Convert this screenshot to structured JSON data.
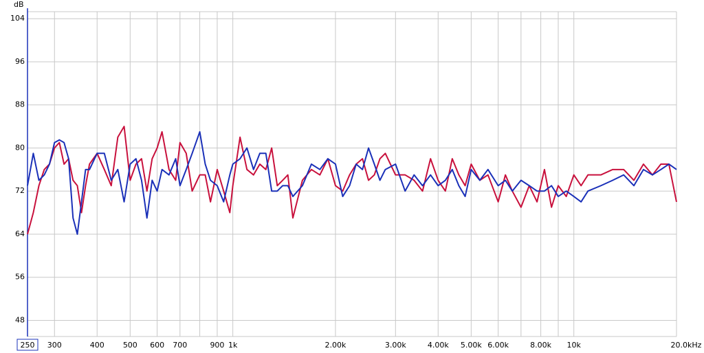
{
  "chart_data": {
    "type": "line",
    "y_label": "dB",
    "log_x": true,
    "grid": true,
    "xlim": [
      250,
      20000
    ],
    "ylim": [
      45,
      105.3
    ],
    "yticks": [
      48,
      56,
      64,
      72,
      80,
      88,
      96,
      104
    ],
    "xticks": [
      250,
      300,
      400,
      500,
      600,
      700,
      900,
      {
        "value": 1000,
        "label": "1k"
      },
      {
        "value": 2000,
        "label": "2.00k"
      },
      {
        "value": 3000,
        "label": "3.00k"
      },
      {
        "value": 4000,
        "label": "4.00k"
      },
      {
        "value": 5000,
        "label": "5.00k"
      },
      {
        "value": 6000,
        "label": "6.00k"
      },
      {
        "value": 8000,
        "label": "8.00k"
      },
      {
        "value": 10000,
        "label": "10k"
      },
      {
        "value": 20000,
        "label": "20.0kHz"
      }
    ],
    "xminor": [
      800,
      7000,
      9000
    ],
    "x": [
      250,
      260,
      270,
      280,
      290,
      300,
      310,
      320,
      330,
      340,
      350,
      360,
      370,
      380,
      400,
      420,
      440,
      460,
      480,
      500,
      520,
      540,
      560,
      580,
      600,
      620,
      650,
      680,
      700,
      730,
      760,
      800,
      830,
      860,
      900,
      940,
      980,
      1000,
      1050,
      1100,
      1150,
      1200,
      1250,
      1300,
      1350,
      1400,
      1450,
      1500,
      1600,
      1700,
      1800,
      1900,
      2000,
      2100,
      2200,
      2300,
      2400,
      2500,
      2600,
      2700,
      2800,
      3000,
      3200,
      3400,
      3600,
      3800,
      4000,
      4200,
      4400,
      4600,
      4800,
      5000,
      5300,
      5600,
      6000,
      6300,
      6600,
      7000,
      7400,
      7800,
      8200,
      8600,
      9000,
      9500,
      10000,
      10500,
      11000,
      12000,
      13000,
      14000,
      15000,
      16000,
      17000,
      18000,
      19000,
      20000
    ],
    "series": [
      {
        "color": "#c8103c",
        "values": [
          64,
          68,
          73,
          76,
          77,
          80,
          81,
          77,
          78,
          74,
          73,
          68,
          73,
          77,
          79,
          76,
          73,
          82,
          84,
          74,
          77,
          78,
          72,
          78,
          80,
          83,
          76,
          74,
          81,
          79,
          72,
          75,
          75,
          70,
          76,
          72,
          68,
          73,
          82,
          76,
          75,
          77,
          76,
          80,
          73,
          74,
          75,
          67,
          74,
          76,
          75,
          78,
          73,
          72,
          75,
          77,
          78,
          74,
          75,
          78,
          79,
          75,
          75,
          74,
          72,
          78,
          74,
          72,
          78,
          75,
          73,
          77,
          74,
          75,
          70,
          75,
          72,
          69,
          73,
          70,
          76,
          69,
          73,
          71,
          75,
          73,
          75,
          75,
          76,
          76,
          74,
          77,
          75,
          77,
          77,
          70
        ]
      },
      {
        "color": "#1a30b8",
        "values": [
          73,
          79,
          74,
          75,
          77,
          81,
          81.5,
          81,
          78,
          67,
          64,
          70,
          76,
          76,
          79,
          79,
          74,
          76,
          70,
          77,
          78,
          74,
          67,
          74,
          72,
          76,
          75,
          78,
          73,
          76,
          79,
          83,
          77,
          74,
          73,
          70,
          75,
          77,
          78,
          80,
          76,
          79,
          79,
          72,
          72,
          73,
          73,
          71,
          73,
          77,
          76,
          78,
          77,
          71,
          73,
          77,
          76,
          80,
          77,
          74,
          76,
          77,
          72,
          75,
          73,
          75,
          73,
          74,
          76,
          73,
          71,
          76,
          74,
          76,
          73,
          74,
          72,
          74,
          73,
          72,
          72,
          73,
          71,
          72,
          71,
          70,
          72,
          73,
          74,
          75,
          73,
          76,
          75,
          76,
          77,
          76
        ]
      }
    ]
  }
}
